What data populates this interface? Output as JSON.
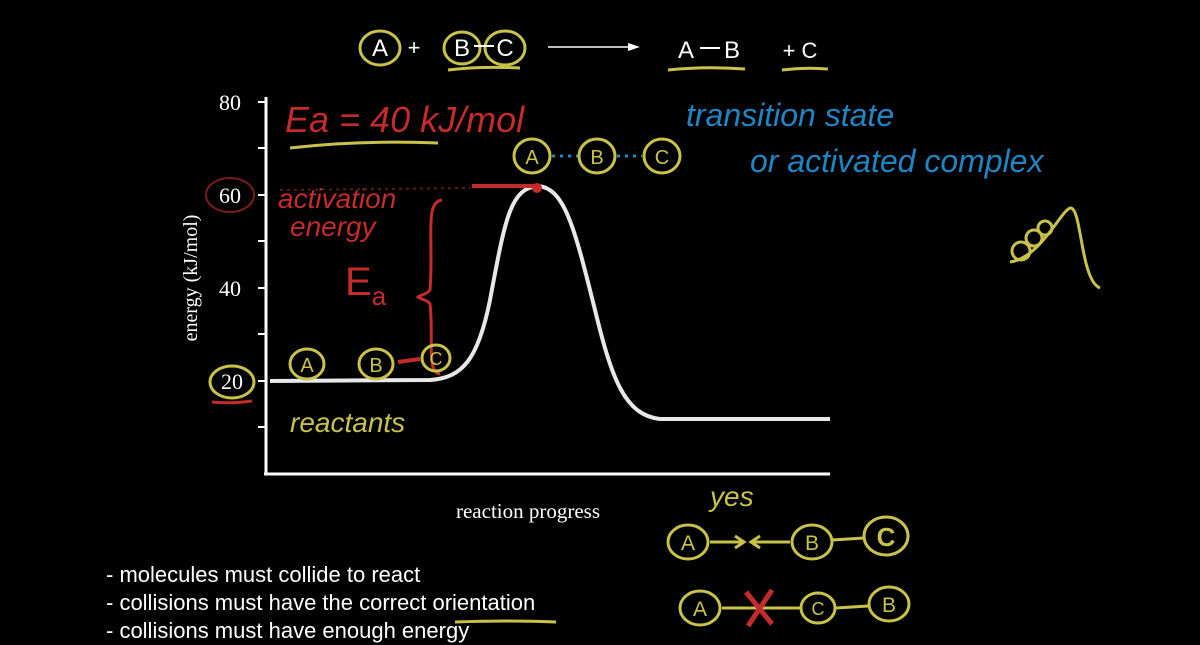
{
  "equation": {
    "left": [
      "A",
      "+",
      "B",
      "C"
    ],
    "right": [
      "A",
      "B",
      "+ C"
    ]
  },
  "diagram": {
    "y_axis_label": "energy (kJ/mol)",
    "x_axis_label": "reaction progress",
    "y_ticks": [
      "80",
      "60",
      "40",
      "20"
    ],
    "ea_formula": "Ea = 40 kJ/mol",
    "activation_label_line1": "activation",
    "activation_label_line2": "energy",
    "ea_symbol": "E",
    "ea_subscript": "a",
    "reactants_label": "reactants",
    "transition_label_line1": "transition state",
    "transition_label_line2": "or activated complex",
    "transition_molecules": [
      "A",
      "B",
      "C"
    ],
    "reactant_molecules": [
      "A",
      "B",
      "C"
    ]
  },
  "orientation": {
    "yes_label": "yes",
    "good_row": [
      "A",
      "B",
      "C"
    ],
    "bad_row": [
      "A",
      "C",
      "B"
    ]
  },
  "bullets": [
    "- molecules must collide to react",
    "- collisions must have the correct orientation",
    "- collisions must have enough energy"
  ],
  "colors": {
    "background": "#000000",
    "yellow": "#c9c24a",
    "red": "#c42b2b",
    "blue": "#1f86c4",
    "curve": "#e8e8e8"
  }
}
